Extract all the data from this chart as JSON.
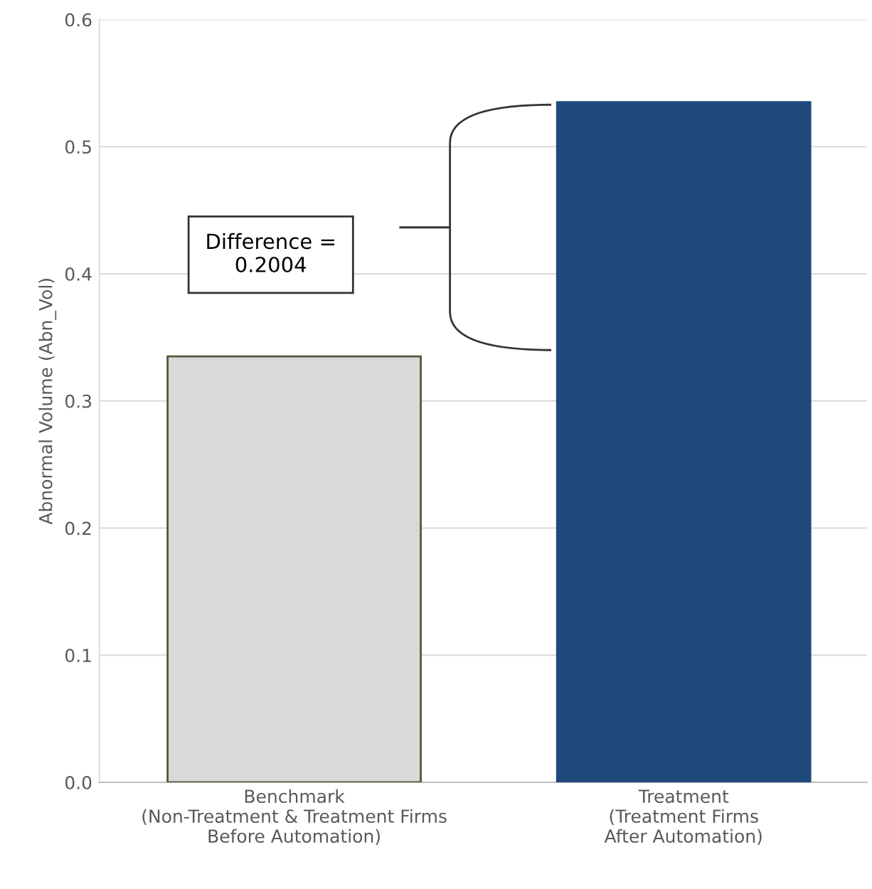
{
  "chart_data": {
    "type": "bar",
    "ylabel": "Abnormal Volume (Abn_Vol)",
    "categories": [
      "Benchmark\n(Non-Treatment & Treatment Firms\nBefore Automation)",
      "Treatment\n(Treatment Firms\nAfter Automation)"
    ],
    "values": [
      0.335,
      0.535
    ],
    "colors": [
      "#d9d9d9",
      "#1f497d"
    ],
    "ylim": [
      0,
      0.6
    ],
    "yticks": [
      {
        "value": 0,
        "label": "0.0"
      },
      0.1,
      0.2,
      0.3,
      0.4,
      0.5,
      0.6
    ],
    "grid": "y",
    "annotations": [
      "Difference =\n0.2004"
    ]
  }
}
